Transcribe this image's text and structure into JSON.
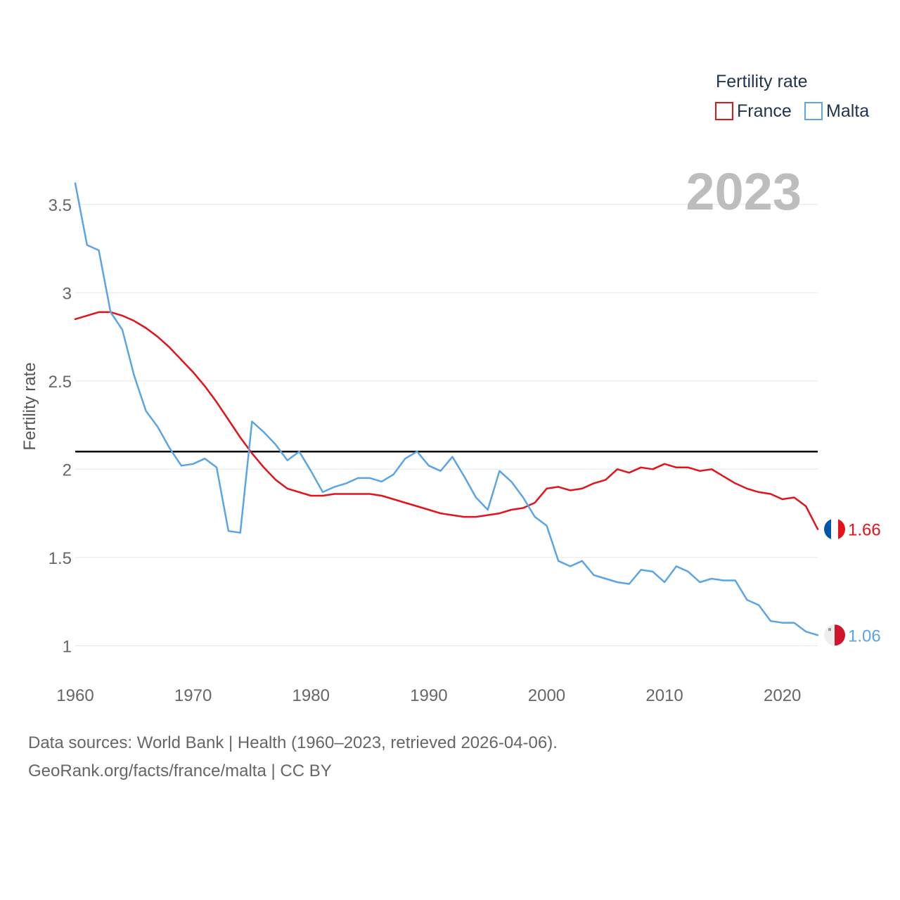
{
  "chart_data": {
    "type": "line",
    "title": "Fertility rate",
    "ylabel": "Fertility rate",
    "xlabel": "",
    "year_stamp": "2023",
    "xlim": [
      1960,
      2023
    ],
    "ylim": [
      0.85,
      3.75
    ],
    "x_ticks": [
      1960,
      1970,
      1980,
      1990,
      2000,
      2010,
      2020
    ],
    "y_ticks": [
      {
        "value": 1,
        "label": "1"
      },
      {
        "value": 1.5,
        "label": "1.5"
      },
      {
        "value": 2,
        "label": "2"
      },
      {
        "value": 2.5,
        "label": "2.5"
      },
      {
        "value": 3,
        "label": "3"
      },
      {
        "value": 3.5,
        "label": "3.5"
      }
    ],
    "reference_line": 2.1,
    "legend_position": "top-right",
    "x": [
      1960,
      1961,
      1962,
      1963,
      1964,
      1965,
      1966,
      1967,
      1968,
      1969,
      1970,
      1971,
      1972,
      1973,
      1974,
      1975,
      1976,
      1977,
      1978,
      1979,
      1980,
      1981,
      1982,
      1983,
      1984,
      1985,
      1986,
      1987,
      1988,
      1989,
      1990,
      1991,
      1992,
      1993,
      1994,
      1995,
      1996,
      1997,
      1998,
      1999,
      2000,
      2001,
      2002,
      2003,
      2004,
      2005,
      2006,
      2007,
      2008,
      2009,
      2010,
      2011,
      2012,
      2013,
      2014,
      2015,
      2016,
      2017,
      2018,
      2019,
      2020,
      2021,
      2022,
      2023
    ],
    "series": [
      {
        "name": "France",
        "color": "#e3131b",
        "end_label": "1.66",
        "flag": "france",
        "values": [
          2.85,
          2.87,
          2.89,
          2.89,
          2.87,
          2.84,
          2.8,
          2.75,
          2.69,
          2.62,
          2.55,
          2.47,
          2.38,
          2.28,
          2.18,
          2.09,
          2.01,
          1.94,
          1.89,
          1.87,
          1.85,
          1.85,
          1.86,
          1.86,
          1.86,
          1.86,
          1.85,
          1.83,
          1.81,
          1.79,
          1.77,
          1.75,
          1.74,
          1.73,
          1.73,
          1.74,
          1.75,
          1.77,
          1.78,
          1.81,
          1.89,
          1.9,
          1.88,
          1.89,
          1.92,
          1.94,
          2.0,
          1.98,
          2.01,
          2.0,
          2.03,
          2.01,
          2.01,
          1.99,
          2.0,
          1.96,
          1.92,
          1.89,
          1.87,
          1.86,
          1.83,
          1.84,
          1.79,
          1.66
        ]
      },
      {
        "name": "Malta",
        "color": "#5ba4e5",
        "end_label": "1.06",
        "flag": "malta",
        "values": [
          3.62,
          3.27,
          3.24,
          2.89,
          2.79,
          2.53,
          2.33,
          2.24,
          2.12,
          2.02,
          2.03,
          2.06,
          2.01,
          1.65,
          1.64,
          2.27,
          2.21,
          2.14,
          2.05,
          2.1,
          1.99,
          1.87,
          1.9,
          1.92,
          1.95,
          1.95,
          1.93,
          1.97,
          2.06,
          2.1,
          2.02,
          1.99,
          2.07,
          1.96,
          1.84,
          1.77,
          1.99,
          1.93,
          1.84,
          1.73,
          1.68,
          1.48,
          1.45,
          1.48,
          1.4,
          1.38,
          1.36,
          1.35,
          1.43,
          1.42,
          1.36,
          1.45,
          1.42,
          1.36,
          1.38,
          1.37,
          1.37,
          1.26,
          1.23,
          1.14,
          1.13,
          1.13,
          1.08,
          1.06
        ]
      }
    ]
  },
  "footer": {
    "line1": "Data sources: World Bank | Health (1960–2023, retrieved 2026-04-06).",
    "line2": "GeoRank.org/facts/france/malta | CC BY"
  }
}
